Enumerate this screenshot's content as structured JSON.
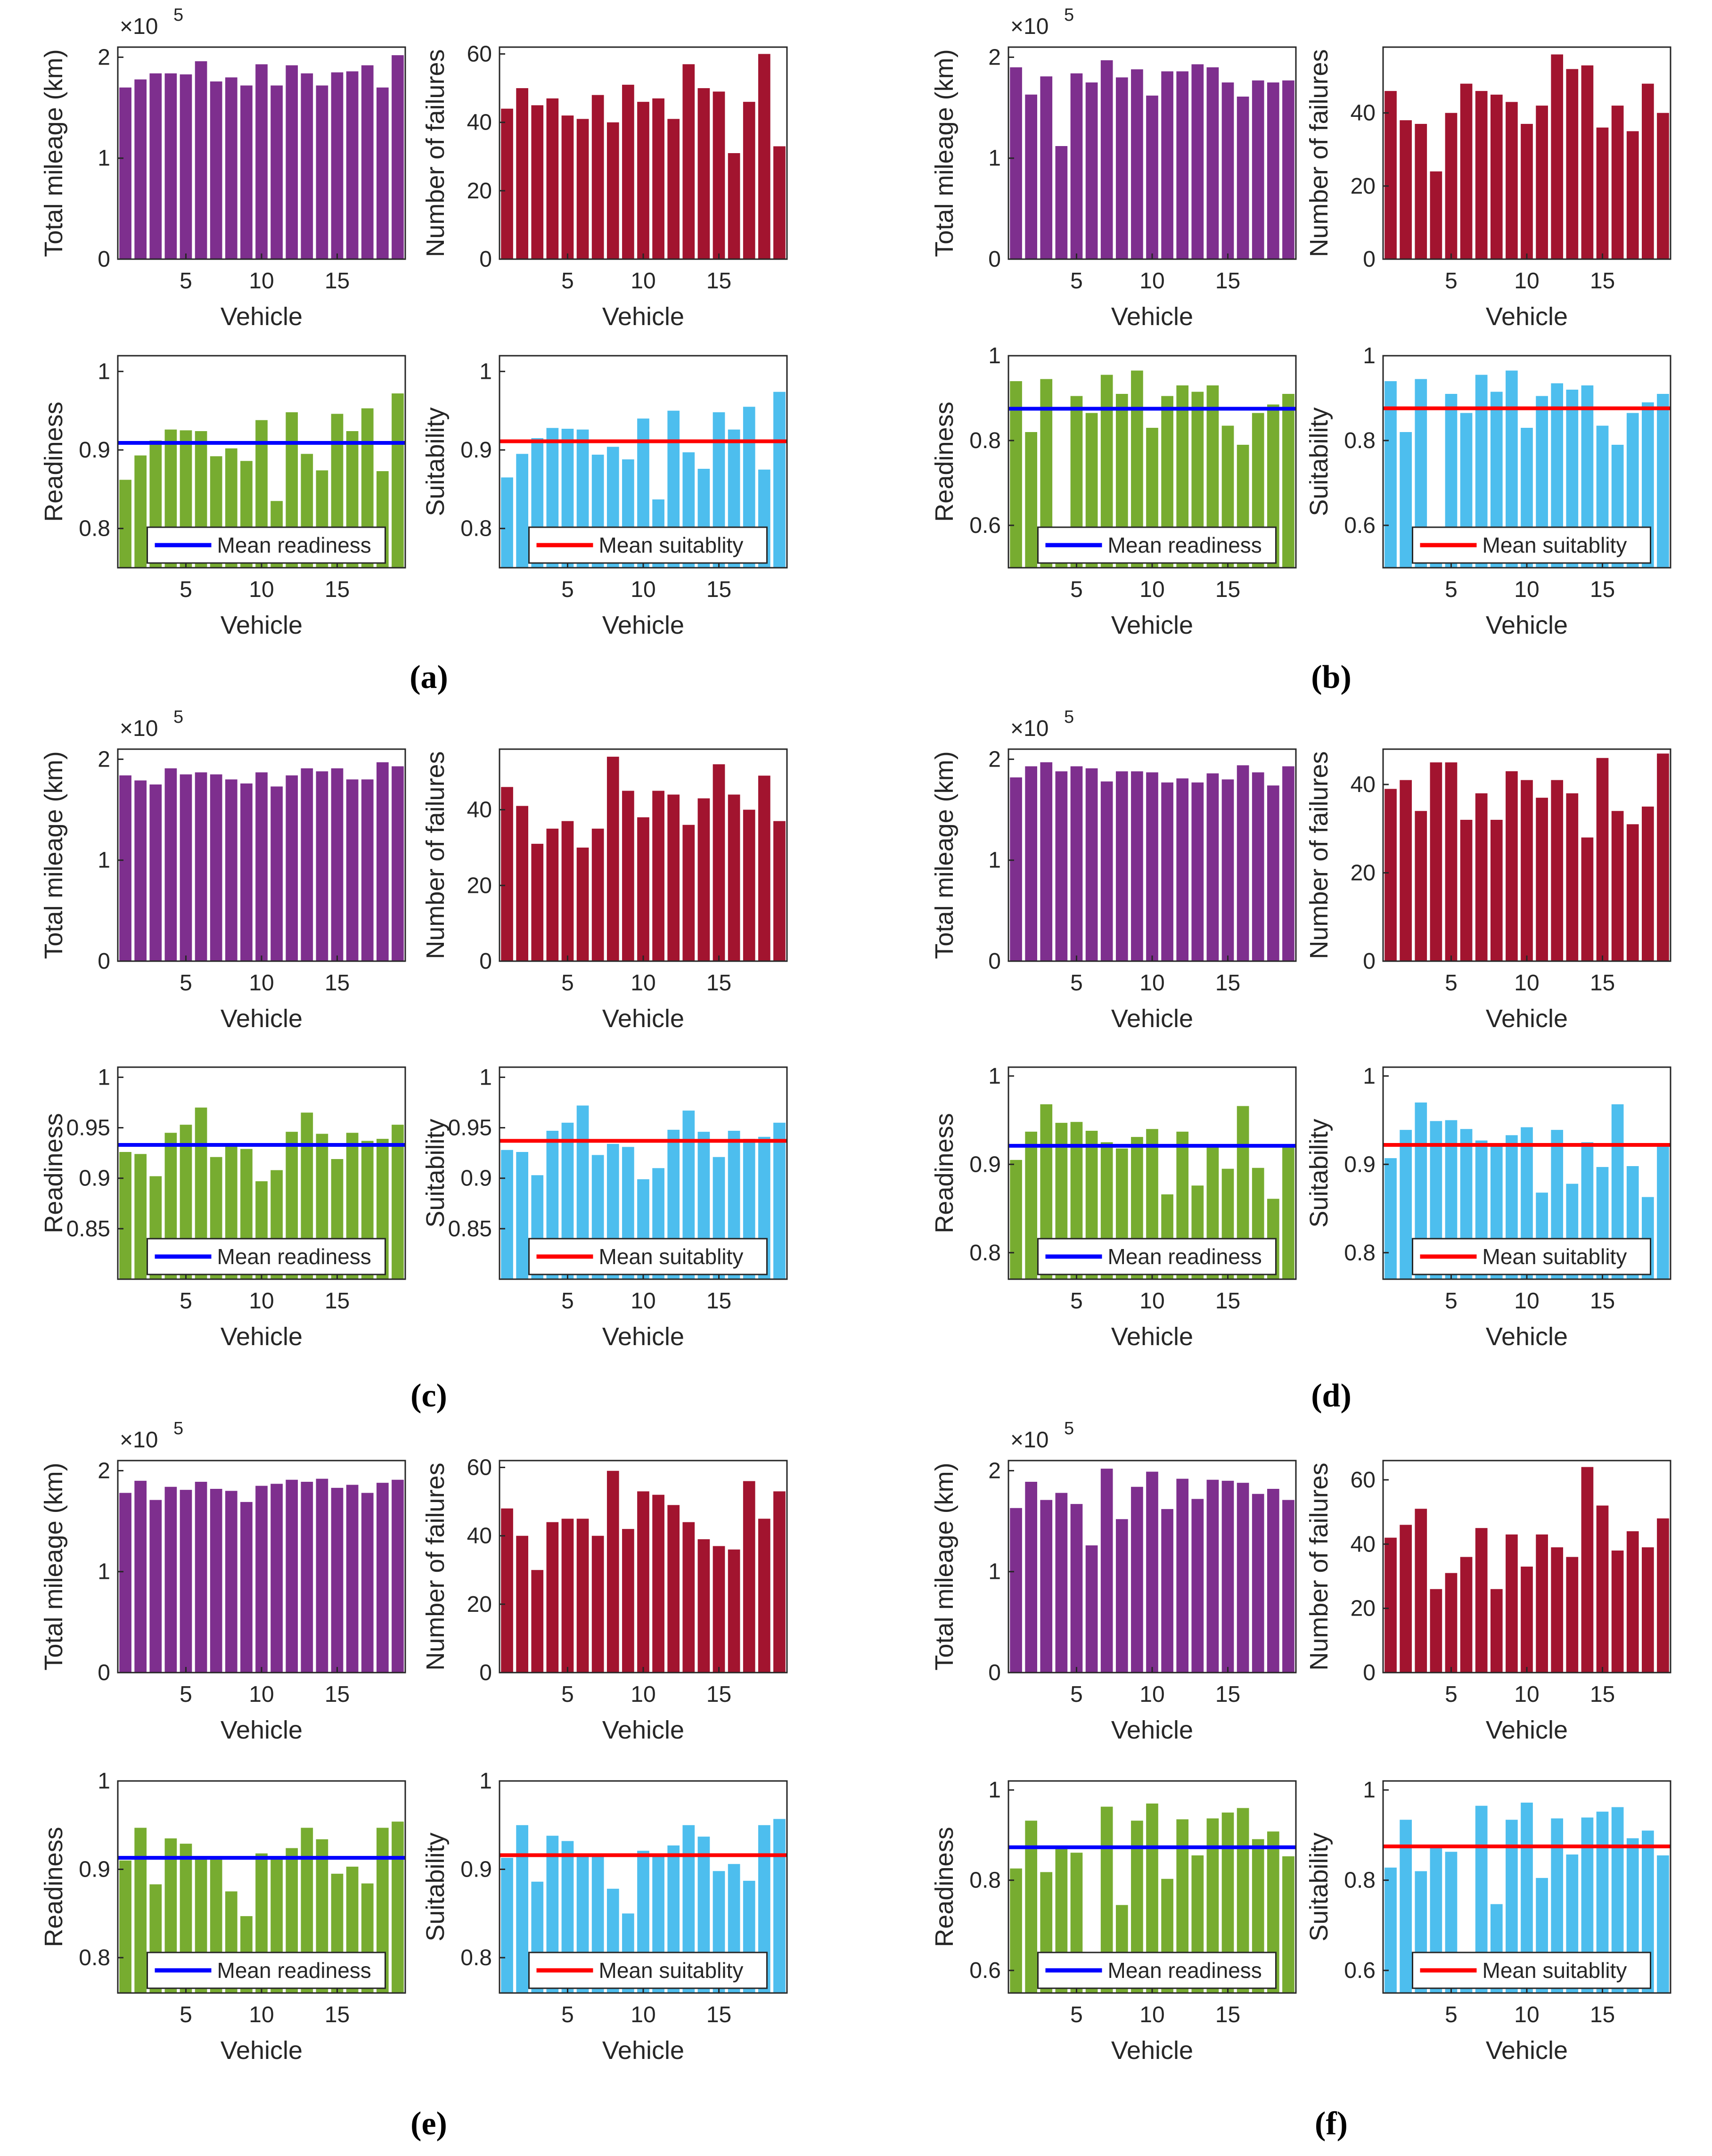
{
  "colors": {
    "mileage": "#7e2f8e",
    "failures": "#a2142f",
    "readiness": "#77ac30",
    "suitability": "#4dbeee",
    "mean_readiness_line": "#0000ff",
    "mean_suitability_line": "#ff0000"
  },
  "panels": [
    {
      "caption_letter": "a",
      "caption": "(a)"
    },
    {
      "caption_letter": "b",
      "caption": "(b)"
    },
    {
      "caption_letter": "c",
      "caption": "(c)"
    },
    {
      "caption_letter": "d",
      "caption": "(d)"
    },
    {
      "caption_letter": "e",
      "caption": "(e)"
    },
    {
      "caption_letter": "f",
      "caption": "(f)"
    }
  ],
  "chart_data": [
    {
      "panel": "a",
      "metric": "mileage",
      "type": "bar",
      "xlabel": "Vehicle",
      "ylabel": "Total mileage (km)",
      "exponent_label": "×10",
      "exponent_power": "5",
      "ylim": [
        0,
        2.1
      ],
      "yticks": [
        0,
        1,
        2
      ],
      "xticks": [
        5,
        10,
        15
      ],
      "values": [
        1.7,
        1.78,
        1.84,
        1.84,
        1.83,
        1.96,
        1.76,
        1.8,
        1.72,
        1.93,
        1.72,
        1.92,
        1.84,
        1.72,
        1.85,
        1.86,
        1.92,
        1.7,
        2.02
      ]
    },
    {
      "panel": "a",
      "metric": "failures",
      "type": "bar",
      "xlabel": "Vehicle",
      "ylabel": "Number of failures",
      "ylim": [
        0,
        62
      ],
      "yticks": [
        0,
        20,
        40,
        60
      ],
      "xticks": [
        5,
        10,
        15
      ],
      "values": [
        44,
        50,
        45,
        47,
        42,
        41,
        48,
        40,
        51,
        46,
        47,
        41,
        57,
        50,
        49,
        31,
        46,
        60,
        33
      ]
    },
    {
      "panel": "a",
      "metric": "readiness",
      "type": "bar",
      "xlabel": "Vehicle",
      "ylabel": "Readiness",
      "ylim": [
        0.75,
        1.02
      ],
      "yticks": [
        0.8,
        0.9,
        1
      ],
      "xticks": [
        5,
        10,
        15
      ],
      "mean": 0.909,
      "legend": "Mean readiness",
      "values": [
        0.862,
        0.893,
        0.912,
        0.926,
        0.925,
        0.924,
        0.892,
        0.902,
        0.886,
        0.938,
        0.835,
        0.948,
        0.895,
        0.874,
        0.946,
        0.924,
        0.953,
        0.873,
        0.972
      ]
    },
    {
      "panel": "a",
      "metric": "suitability",
      "type": "bar",
      "xlabel": "Vehicle",
      "ylabel": "Suitability",
      "ylim": [
        0.75,
        1.02
      ],
      "yticks": [
        0.8,
        0.9,
        1
      ],
      "xticks": [
        5,
        10,
        15
      ],
      "mean": 0.911,
      "legend": "Mean suitablity",
      "values": [
        0.865,
        0.895,
        0.915,
        0.928,
        0.927,
        0.926,
        0.894,
        0.904,
        0.888,
        0.94,
        0.837,
        0.95,
        0.897,
        0.876,
        0.948,
        0.926,
        0.955,
        0.875,
        0.974
      ]
    },
    {
      "panel": "b",
      "metric": "mileage",
      "type": "bar",
      "xlabel": "Vehicle",
      "ylabel": "Total mileage (km)",
      "exponent_label": "×10",
      "exponent_power": "5",
      "ylim": [
        0,
        2.1
      ],
      "yticks": [
        0,
        1,
        2
      ],
      "xticks": [
        5,
        10,
        15
      ],
      "values": [
        1.9,
        1.63,
        1.81,
        1.12,
        1.84,
        1.75,
        1.97,
        1.8,
        1.88,
        1.62,
        1.86,
        1.86,
        1.93,
        1.9,
        1.75,
        1.61,
        1.77,
        1.75,
        1.77
      ]
    },
    {
      "panel": "b",
      "metric": "failures",
      "type": "bar",
      "xlabel": "Vehicle",
      "ylabel": "Number of failures",
      "ylim": [
        0,
        58
      ],
      "yticks": [
        0,
        20,
        40
      ],
      "xticks": [
        5,
        10,
        15
      ],
      "values": [
        46,
        38,
        37,
        24,
        40,
        48,
        46,
        45,
        43,
        37,
        42,
        56,
        52,
        53,
        36,
        42,
        35,
        48,
        40
      ]
    },
    {
      "panel": "b",
      "metric": "readiness",
      "type": "bar",
      "xlabel": "Vehicle",
      "ylabel": "Readiness",
      "ylim": [
        0.5,
        1.0
      ],
      "yticks": [
        0.6,
        0.8,
        1
      ],
      "xticks": [
        5,
        10,
        15
      ],
      "mean": 0.875,
      "legend": "Mean readiness",
      "values": [
        0.94,
        0.82,
        0.945,
        0.57,
        0.905,
        0.865,
        0.955,
        0.91,
        0.965,
        0.83,
        0.905,
        0.93,
        0.915,
        0.93,
        0.835,
        0.79,
        0.865,
        0.885,
        0.91
      ]
    },
    {
      "panel": "b",
      "metric": "suitability",
      "type": "bar",
      "xlabel": "Vehicle",
      "ylabel": "Suitability",
      "ylim": [
        0.5,
        1.0
      ],
      "yticks": [
        0.6,
        0.8,
        1
      ],
      "xticks": [
        5,
        10,
        15
      ],
      "mean": 0.876,
      "legend": "Mean suitablity",
      "values": [
        0.94,
        0.82,
        0.945,
        0.565,
        0.91,
        0.865,
        0.955,
        0.915,
        0.965,
        0.83,
        0.905,
        0.935,
        0.92,
        0.93,
        0.835,
        0.79,
        0.865,
        0.89,
        0.91
      ]
    },
    {
      "panel": "c",
      "metric": "mileage",
      "type": "bar",
      "xlabel": "Vehicle",
      "ylabel": "Total mileage (km)",
      "exponent_label": "×10",
      "exponent_power": "5",
      "ylim": [
        0,
        2.1
      ],
      "yticks": [
        0,
        1,
        2
      ],
      "xticks": [
        5,
        10,
        15
      ],
      "values": [
        1.84,
        1.79,
        1.75,
        1.91,
        1.85,
        1.87,
        1.85,
        1.8,
        1.76,
        1.87,
        1.73,
        1.84,
        1.91,
        1.88,
        1.91,
        1.8,
        1.8,
        1.97,
        1.93
      ]
    },
    {
      "panel": "c",
      "metric": "failures",
      "type": "bar",
      "xlabel": "Vehicle",
      "ylabel": "Number of failures",
      "ylim": [
        0,
        56
      ],
      "yticks": [
        0,
        20,
        40
      ],
      "xticks": [
        5,
        10,
        15
      ],
      "values": [
        46,
        41,
        31,
        35,
        37,
        30,
        35,
        54,
        45,
        38,
        45,
        44,
        36,
        43,
        52,
        44,
        40,
        49,
        37
      ]
    },
    {
      "panel": "c",
      "metric": "readiness",
      "type": "bar",
      "xlabel": "Vehicle",
      "ylabel": "Readiness",
      "ylim": [
        0.8,
        1.01
      ],
      "yticks": [
        0.85,
        0.9,
        0.95,
        1
      ],
      "xticks": [
        5,
        10,
        15
      ],
      "mean": 0.933,
      "legend": "Mean readiness",
      "values": [
        0.926,
        0.924,
        0.902,
        0.945,
        0.953,
        0.97,
        0.921,
        0.932,
        0.929,
        0.897,
        0.908,
        0.946,
        0.965,
        0.944,
        0.919,
        0.945,
        0.937,
        0.939,
        0.953
      ]
    },
    {
      "panel": "c",
      "metric": "suitability",
      "type": "bar",
      "xlabel": "Vehicle",
      "ylabel": "Suitability",
      "ylim": [
        0.8,
        1.01
      ],
      "yticks": [
        0.85,
        0.9,
        0.95,
        1
      ],
      "xticks": [
        5,
        10,
        15
      ],
      "mean": 0.937,
      "legend": "Mean suitablity",
      "values": [
        0.928,
        0.926,
        0.903,
        0.947,
        0.955,
        0.972,
        0.923,
        0.934,
        0.931,
        0.899,
        0.91,
        0.948,
        0.967,
        0.946,
        0.921,
        0.947,
        0.939,
        0.941,
        0.955
      ]
    },
    {
      "panel": "d",
      "metric": "mileage",
      "type": "bar",
      "xlabel": "Vehicle",
      "ylabel": "Total mileage (km)",
      "exponent_label": "×10",
      "exponent_power": "5",
      "ylim": [
        0,
        2.1
      ],
      "yticks": [
        0,
        1,
        2
      ],
      "xticks": [
        5,
        10,
        15
      ],
      "values": [
        1.82,
        1.93,
        1.97,
        1.88,
        1.93,
        1.91,
        1.78,
        1.88,
        1.88,
        1.87,
        1.77,
        1.81,
        1.77,
        1.86,
        1.8,
        1.94,
        1.87,
        1.74,
        1.93
      ]
    },
    {
      "panel": "d",
      "metric": "failures",
      "type": "bar",
      "xlabel": "Vehicle",
      "ylabel": "Number of failures",
      "ylim": [
        0,
        48
      ],
      "yticks": [
        0,
        20,
        40
      ],
      "xticks": [
        5,
        10,
        15
      ],
      "values": [
        39,
        41,
        34,
        45,
        45,
        32,
        38,
        32,
        43,
        41,
        37,
        41,
        38,
        28,
        46,
        34,
        31,
        35,
        47
      ]
    },
    {
      "panel": "d",
      "metric": "readiness",
      "type": "bar",
      "xlabel": "Vehicle",
      "ylabel": "Readiness",
      "ylim": [
        0.77,
        1.01
      ],
      "yticks": [
        0.8,
        0.9,
        1
      ],
      "xticks": [
        5,
        10,
        15
      ],
      "mean": 0.921,
      "legend": "Mean readiness",
      "values": [
        0.905,
        0.937,
        0.968,
        0.947,
        0.948,
        0.938,
        0.925,
        0.918,
        0.931,
        0.94,
        0.866,
        0.937,
        0.876,
        0.923,
        0.895,
        0.966,
        0.896,
        0.861,
        0.921
      ]
    },
    {
      "panel": "d",
      "metric": "suitability",
      "type": "bar",
      "xlabel": "Vehicle",
      "ylabel": "Suitability",
      "ylim": [
        0.77,
        1.01
      ],
      "yticks": [
        0.8,
        0.9,
        1
      ],
      "xticks": [
        5,
        10,
        15
      ],
      "mean": 0.922,
      "legend": "Mean suitablity",
      "values": [
        0.907,
        0.939,
        0.97,
        0.949,
        0.95,
        0.94,
        0.927,
        0.92,
        0.933,
        0.942,
        0.868,
        0.939,
        0.878,
        0.925,
        0.897,
        0.968,
        0.898,
        0.863,
        0.923
      ]
    },
    {
      "panel": "e",
      "metric": "mileage",
      "type": "bar",
      "xlabel": "Vehicle",
      "ylabel": "Total mileage (km)",
      "exponent_label": "×10",
      "exponent_power": "5",
      "ylim": [
        0,
        2.1
      ],
      "yticks": [
        0,
        1,
        2
      ],
      "xticks": [
        5,
        10,
        15
      ],
      "values": [
        1.78,
        1.9,
        1.71,
        1.84,
        1.81,
        1.89,
        1.82,
        1.8,
        1.69,
        1.85,
        1.87,
        1.91,
        1.89,
        1.92,
        1.83,
        1.86,
        1.78,
        1.88,
        1.91
      ]
    },
    {
      "panel": "e",
      "metric": "failures",
      "type": "bar",
      "xlabel": "Vehicle",
      "ylabel": "Number of failures",
      "ylim": [
        0,
        62
      ],
      "yticks": [
        0,
        20,
        40,
        60
      ],
      "xticks": [
        5,
        10,
        15
      ],
      "values": [
        48,
        40,
        30,
        44,
        45,
        45,
        40,
        59,
        42,
        53,
        52,
        49,
        44,
        39,
        37,
        36,
        56,
        45,
        53
      ]
    },
    {
      "panel": "e",
      "metric": "readiness",
      "type": "bar",
      "xlabel": "Vehicle",
      "ylabel": "Readiness",
      "ylim": [
        0.76,
        1.0
      ],
      "yticks": [
        0.8,
        0.9,
        1
      ],
      "xticks": [
        5,
        10,
        15
      ],
      "mean": 0.913,
      "legend": "Mean readiness",
      "values": [
        0.91,
        0.947,
        0.883,
        0.935,
        0.929,
        0.913,
        0.913,
        0.875,
        0.847,
        0.918,
        0.913,
        0.924,
        0.947,
        0.934,
        0.895,
        0.903,
        0.884,
        0.947,
        0.954
      ]
    },
    {
      "panel": "e",
      "metric": "suitability",
      "type": "bar",
      "xlabel": "Vehicle",
      "ylabel": "Suitability",
      "ylim": [
        0.76,
        1.0
      ],
      "yticks": [
        0.8,
        0.9,
        1
      ],
      "xticks": [
        5,
        10,
        15
      ],
      "mean": 0.916,
      "legend": "Mean suitablity",
      "values": [
        0.913,
        0.95,
        0.886,
        0.938,
        0.932,
        0.916,
        0.916,
        0.878,
        0.85,
        0.921,
        0.916,
        0.927,
        0.95,
        0.937,
        0.898,
        0.906,
        0.887,
        0.95,
        0.957
      ]
    },
    {
      "panel": "f",
      "metric": "mileage",
      "type": "bar",
      "xlabel": "Vehicle",
      "ylabel": "Total mileage (km)",
      "exponent_label": "×10",
      "exponent_power": "5",
      "ylim": [
        0,
        2.1
      ],
      "yticks": [
        0,
        1,
        2
      ],
      "xticks": [
        5,
        10,
        15
      ],
      "values": [
        1.63,
        1.89,
        1.71,
        1.78,
        1.67,
        1.26,
        2.02,
        1.52,
        1.84,
        1.99,
        1.62,
        1.92,
        1.72,
        1.91,
        1.9,
        1.88,
        1.77,
        1.82,
        1.71
      ]
    },
    {
      "panel": "f",
      "metric": "failures",
      "type": "bar",
      "xlabel": "Vehicle",
      "ylabel": "Number of failures",
      "ylim": [
        0,
        66
      ],
      "yticks": [
        0,
        20,
        40,
        60
      ],
      "xticks": [
        5,
        10,
        15
      ],
      "values": [
        42,
        46,
        51,
        26,
        31,
        36,
        45,
        26,
        43,
        33,
        43,
        39,
        36,
        64,
        52,
        38,
        44,
        39,
        48
      ]
    },
    {
      "panel": "f",
      "metric": "readiness",
      "type": "bar",
      "xlabel": "Vehicle",
      "ylabel": "Readiness",
      "ylim": [
        0.55,
        1.02
      ],
      "yticks": [
        0.6,
        0.8,
        1
      ],
      "xticks": [
        5,
        10,
        15
      ],
      "mean": 0.873,
      "legend": "Mean readiness",
      "values": [
        0.826,
        0.932,
        0.818,
        0.871,
        0.861,
        0.58,
        0.963,
        0.745,
        0.932,
        0.97,
        0.803,
        0.935,
        0.855,
        0.937,
        0.95,
        0.96,
        0.891,
        0.908,
        0.853
      ]
    },
    {
      "panel": "f",
      "metric": "suitability",
      "type": "bar",
      "xlabel": "Vehicle",
      "ylabel": "Suitability",
      "ylim": [
        0.55,
        1.02
      ],
      "yticks": [
        0.6,
        0.8,
        1
      ],
      "xticks": [
        5,
        10,
        15
      ],
      "mean": 0.875,
      "legend": "Mean suitablity",
      "values": [
        0.828,
        0.934,
        0.82,
        0.873,
        0.863,
        0.582,
        0.965,
        0.747,
        0.934,
        0.972,
        0.805,
        0.937,
        0.857,
        0.939,
        0.952,
        0.962,
        0.893,
        0.91,
        0.855
      ]
    }
  ]
}
